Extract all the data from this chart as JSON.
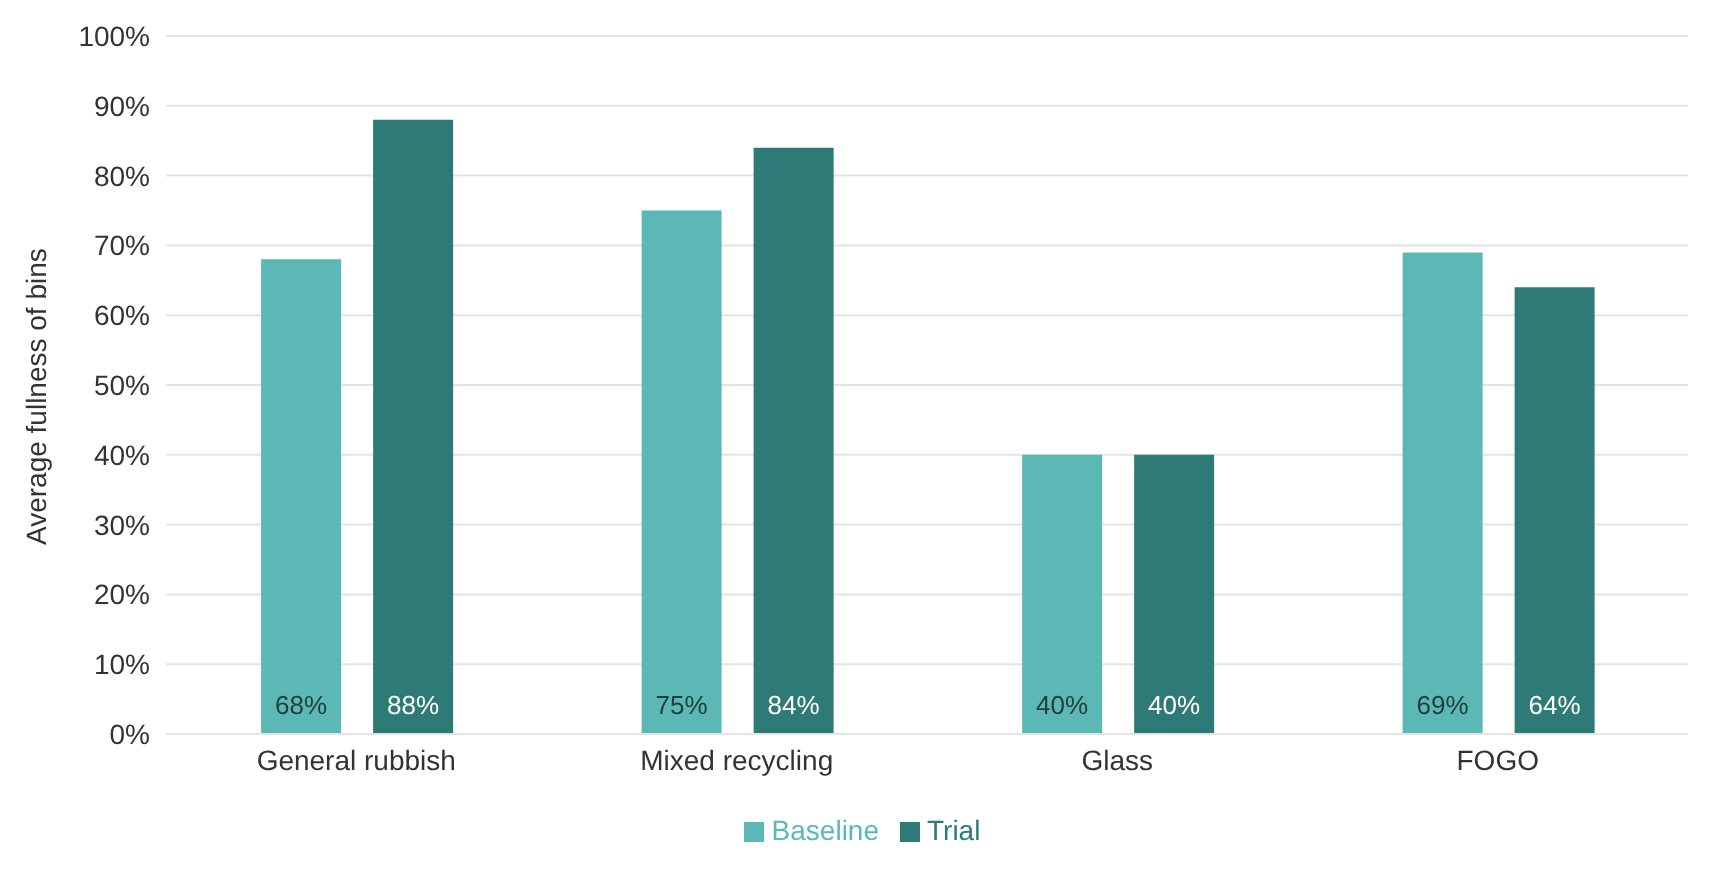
{
  "chart_data": {
    "type": "bar",
    "ylabel": "Average fullness of bins",
    "categories": [
      "General rubbish",
      "Mixed recycling",
      "Glass",
      "FOGO"
    ],
    "series": [
      {
        "name": "Baseline",
        "color": "#5bb8b4",
        "values": [
          68,
          75,
          40,
          69
        ],
        "value_labels": [
          "68%",
          "75%",
          "40%",
          "69%"
        ]
      },
      {
        "name": "Trial",
        "color": "#2e7a77",
        "values": [
          88,
          84,
          40,
          64
        ],
        "value_labels": [
          "88%",
          "84%",
          "40%",
          "64%"
        ]
      }
    ],
    "ylim": [
      0,
      100
    ],
    "yticks": [
      {
        "value": 0,
        "label": "0%"
      },
      {
        "value": 10,
        "label": "10%"
      },
      {
        "value": 20,
        "label": "20%"
      },
      {
        "value": 30,
        "label": "30%"
      },
      {
        "value": 40,
        "label": "40%"
      },
      {
        "value": 50,
        "label": "50%"
      },
      {
        "value": 60,
        "label": "60%"
      },
      {
        "value": 70,
        "label": "70%"
      },
      {
        "value": 80,
        "label": "80%"
      },
      {
        "value": 90,
        "label": "90%"
      },
      {
        "value": 100,
        "label": "100%"
      }
    ],
    "grid": "y",
    "legend": "bottom"
  }
}
